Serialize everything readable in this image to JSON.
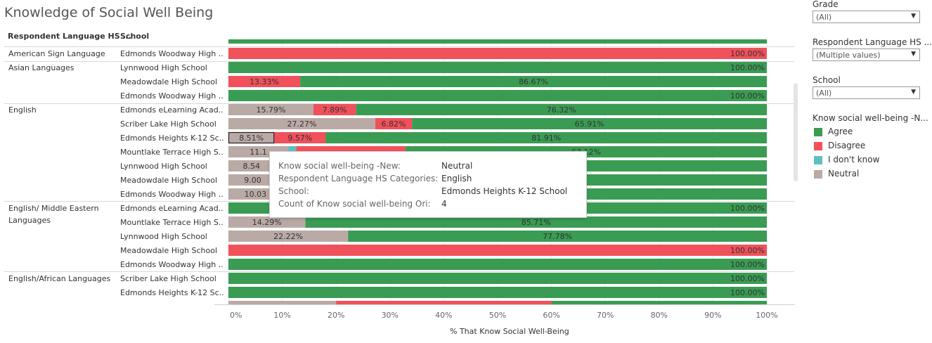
{
  "title": "Knowledge of Social Well Being",
  "headers": {
    "language": "Respondent Language HS ...",
    "school": "School"
  },
  "groups": [
    {
      "label": "American Sign Language"
    },
    {
      "label": "Asian Languages"
    },
    {
      "label": "English"
    },
    {
      "label": "English/ Middle Eastern Languages"
    },
    {
      "label": "English/African Languages"
    }
  ],
  "schools": [
    "Edmonds Woodway High ..",
    "Lynnwood High School",
    "Meadowdale High School",
    "Edmonds Woodway High ..",
    "Edmonds eLearning Acad..",
    "Scriber Lake High School",
    "Edmonds Heights K-12 Sc..",
    "Mountlake Terrace High S..",
    "Lynnwood High School",
    "Meadowdale High School",
    "Edmonds Woodway High ..",
    "Edmonds eLearning Acad..",
    "Mountlake Terrace High S..",
    "Lynnwood High School",
    "Meadowdale High School",
    "Edmonds Woodway High ..",
    "Scriber Lake High School",
    "Edmonds Heights K-12 Sc.."
  ],
  "chart_data": {
    "type": "bar",
    "orientation": "horizontal",
    "stacked": true,
    "xlabel": "% That Know Social Well-Being",
    "xlim": [
      0,
      100
    ],
    "x_ticks": [
      "0%",
      "10%",
      "20%",
      "30%",
      "40%",
      "50%",
      "60%",
      "70%",
      "80%",
      "90%",
      "100%"
    ],
    "segment_order": [
      "Neutral",
      "I don't know",
      "Disagree",
      "Agree"
    ],
    "colors": {
      "Agree": "#3a9c53",
      "Disagree": "#f0515a",
      "I don't know": "#5ebfbf",
      "Neutral": "#baaaa6"
    },
    "rows": [
      {
        "group": "American Sign Language",
        "school": "Edmonds Woodway High ..",
        "Neutral": 0,
        "I don't know": 0,
        "Disagree": 100.0,
        "Agree": 0,
        "labels": {
          "Disagree": "100.00%"
        }
      },
      {
        "group": "Asian Languages",
        "school": "Lynnwood High School",
        "Neutral": 0,
        "I don't know": 0,
        "Disagree": 0,
        "Agree": 100.0,
        "labels": {
          "Agree": "100.00%"
        }
      },
      {
        "group": "Asian Languages",
        "school": "Meadowdale High School",
        "Neutral": 0,
        "I don't know": 0,
        "Disagree": 13.33,
        "Agree": 86.67,
        "labels": {
          "Disagree": "13.33%",
          "Agree": "86.67%"
        }
      },
      {
        "group": "Asian Languages",
        "school": "Edmonds Woodway High ..",
        "Neutral": 0,
        "I don't know": 0,
        "Disagree": 0,
        "Agree": 100.0,
        "labels": {
          "Agree": "100.00%"
        }
      },
      {
        "group": "English",
        "school": "Edmonds eLearning Acad..",
        "Neutral": 15.79,
        "I don't know": 0,
        "Disagree": 7.89,
        "Agree": 76.32,
        "labels": {
          "Neutral": "15.79%",
          "Disagree": "7.89%",
          "Agree": "76.32%"
        }
      },
      {
        "group": "English",
        "school": "Scriber Lake High School",
        "Neutral": 27.27,
        "I don't know": 0,
        "Disagree": 6.82,
        "Agree": 65.91,
        "labels": {
          "Neutral": "27.27%",
          "Disagree": "6.82%",
          "Agree": "65.91%"
        }
      },
      {
        "group": "English",
        "school": "Edmonds Heights K-12 Sc..",
        "Neutral": 8.51,
        "I don't know": 0,
        "Disagree": 9.57,
        "Agree": 81.91,
        "labels": {
          "Neutral": "8.51%",
          "Disagree": "9.57%",
          "Agree": "81.91%"
        }
      },
      {
        "group": "English",
        "school": "Mountlake Terrace High S..",
        "Neutral": 11.11,
        "I don't know": 1.5,
        "Disagree": 20.27,
        "Agree": 67.12,
        "labels": {
          "Neutral": "11.1",
          "Agree": "67.12%"
        }
      },
      {
        "group": "English",
        "school": "Lynnwood High School",
        "Neutral": 8.54,
        "I don't know": 0,
        "Disagree": 15.0,
        "Agree": 76.46,
        "labels": {
          "Neutral": "8.54"
        }
      },
      {
        "group": "English",
        "school": "Meadowdale High School",
        "Neutral": 9.0,
        "I don't know": 0,
        "Disagree": 14.0,
        "Agree": 77.0,
        "labels": {
          "Neutral": "9.00"
        }
      },
      {
        "group": "English",
        "school": "Edmonds Woodway High ..",
        "Neutral": 10.03,
        "I don't know": 0,
        "Disagree": 13.0,
        "Agree": 76.97,
        "labels": {
          "Neutral": "10.03"
        }
      },
      {
        "group": "English/ Middle Eastern Languages",
        "school": "Edmonds eLearning Acad..",
        "Neutral": 0,
        "I don't know": 0,
        "Disagree": 0,
        "Agree": 100.0,
        "labels": {
          "Agree": "100.00%"
        }
      },
      {
        "group": "English/ Middle Eastern Languages",
        "school": "Mountlake Terrace High S..",
        "Neutral": 14.29,
        "I don't know": 0,
        "Disagree": 0,
        "Agree": 85.71,
        "labels": {
          "Neutral": "14.29%",
          "Agree": "85.71%"
        }
      },
      {
        "group": "English/ Middle Eastern Languages",
        "school": "Lynnwood High School",
        "Neutral": 22.22,
        "I don't know": 0,
        "Disagree": 0,
        "Agree": 77.78,
        "labels": {
          "Neutral": "22.22%",
          "Agree": "77.78%"
        }
      },
      {
        "group": "English/ Middle Eastern Languages",
        "school": "Meadowdale High School",
        "Neutral": 0,
        "I don't know": 0,
        "Disagree": 100.0,
        "Agree": 0,
        "labels": {
          "Disagree": "100.00%"
        }
      },
      {
        "group": "English/ Middle Eastern Languages",
        "school": "Edmonds Woodway High ..",
        "Neutral": 0,
        "I don't know": 0,
        "Disagree": 0,
        "Agree": 100.0,
        "labels": {
          "Agree": "100.00%"
        }
      },
      {
        "group": "English/African Languages",
        "school": "Scriber Lake High School",
        "Neutral": 0,
        "I don't know": 0,
        "Disagree": 0,
        "Agree": 100.0,
        "labels": {
          "Agree": "100.00%"
        }
      },
      {
        "group": "English/African Languages",
        "school": "Edmonds Heights K-12 Sc..",
        "Neutral": 0,
        "I don't know": 0,
        "Disagree": 0,
        "Agree": 100.0,
        "labels": {
          "Agree": "100.00%"
        }
      }
    ],
    "highlighted_row": 6,
    "highlighted_segment": "Neutral"
  },
  "tooltip": {
    "rows": [
      {
        "key": "Know social well-being -New:",
        "value": "Neutral"
      },
      {
        "key": "Respondent Language HS Categories:",
        "value": "English"
      },
      {
        "key": "School:",
        "value": "Edmonds Heights K-12 School"
      },
      {
        "key": "Count of Know social well-being Ori:",
        "value": "4"
      }
    ]
  },
  "filters": {
    "grade": {
      "title": "Grade",
      "value": "(All)"
    },
    "language": {
      "title": "Respondent Language HS ...",
      "value": "(Multiple values)"
    },
    "school": {
      "title": "School",
      "value": "(All)"
    }
  },
  "legend": {
    "title": "Know social well-being -N...",
    "items": [
      {
        "label": "Agree",
        "color": "#3a9c53"
      },
      {
        "label": "Disagree",
        "color": "#f0515a"
      },
      {
        "label": "I don't know",
        "color": "#5ebfbf"
      },
      {
        "label": "Neutral",
        "color": "#baaaa6"
      }
    ]
  }
}
